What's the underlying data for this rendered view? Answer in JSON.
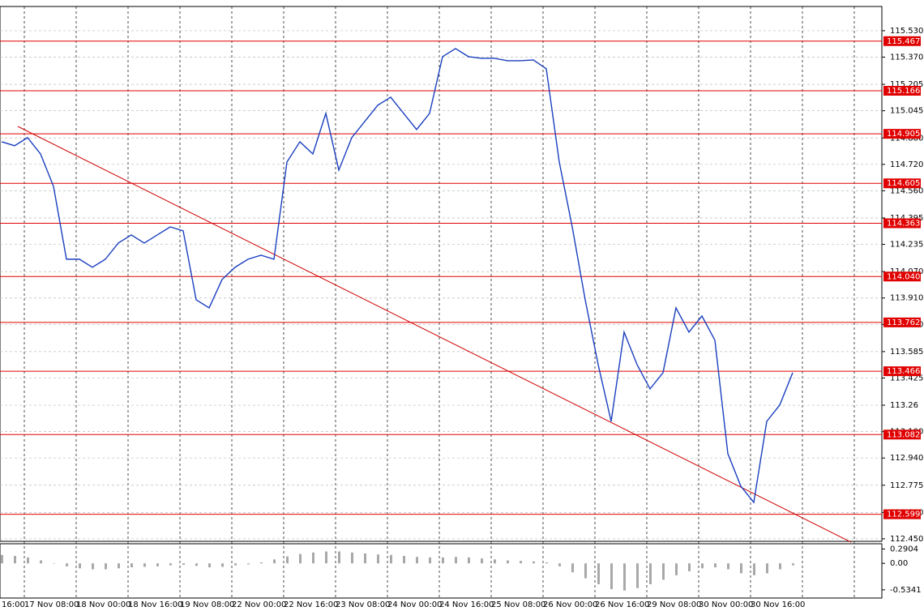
{
  "chart_data": {
    "type": "line",
    "xticks": [
      "16:00",
      "17 Nov 08:00",
      "18 Nov 00:00",
      "18 Nov 16:00",
      "19 Nov 08:00",
      "22 Nov 00:00",
      "22 Nov 16:00",
      "23 Nov 08:00",
      "24 Nov 00:00",
      "24 Nov 16:00",
      "25 Nov 08:00",
      "26 Nov 00:00",
      "26 Nov 16:00",
      "29 Nov 08:00",
      "30 Nov 00:00",
      "30 Nov 16:00"
    ],
    "ylim": [
      112.435,
      115.677
    ],
    "yticks": [
      {
        "value": 115.53,
        "label": "115.530"
      },
      {
        "value": 115.37,
        "label": "115.370"
      },
      115.205,
      115.045,
      {
        "value": 114.88,
        "label": "114.880"
      },
      {
        "value": 114.72,
        "label": "114.720"
      },
      {
        "value": 114.56,
        "label": "114.560"
      },
      114.395,
      114.235,
      {
        "value": 114.07,
        "label": "114.070"
      },
      {
        "value": 113.91,
        "label": "113.910"
      },
      {
        "value": 113.75,
        "label": "113.750"
      },
      113.585,
      113.425,
      113.26,
      {
        "value": 113.1,
        "label": "113.100"
      },
      {
        "value": 112.94,
        "label": "112.940"
      },
      112.775,
      {
        "value": 112.61,
        "label": "112.610"
      },
      {
        "value": 112.45,
        "label": "112.450"
      }
    ],
    "levels": [
      115.467,
      115.166,
      114.905,
      114.605,
      114.363,
      {
        "value": 114.04,
        "label": "114.040"
      },
      113.762,
      113.466,
      113.082,
      112.599
    ],
    "level_color": "#e00000",
    "trendline": {
      "start": 114.95,
      "end": 112.43,
      "color": "#d00000"
    },
    "series": [
      {
        "color": "#1a3fbf",
        "values": [
          114.857,
          114.833,
          114.882,
          114.783,
          114.587,
          114.145,
          114.145,
          114.096,
          114.145,
          114.243,
          114.292,
          114.243,
          114.292,
          114.341,
          114.317,
          113.899,
          113.85,
          114.022,
          114.096,
          114.145,
          114.169,
          114.145,
          114.734,
          114.857,
          114.783,
          115.029,
          114.685,
          114.882,
          114.98,
          115.078,
          115.127,
          115.029,
          114.931,
          115.029,
          115.373,
          115.422,
          115.373,
          115.363,
          115.363,
          115.348,
          115.348,
          115.353,
          115.299,
          114.734,
          114.341,
          113.899,
          113.506,
          113.162,
          113.703,
          113.506,
          113.359,
          113.457,
          113.85,
          113.703,
          113.801,
          113.654,
          112.966,
          112.769,
          112.671,
          113.162,
          113.261,
          113.457
        ]
      }
    ],
    "indicator": {
      "color": "#a8a8a8",
      "ylim": [
        -0.7,
        0.38
      ],
      "yticks": [
        0.2904,
        {
          "value": 0,
          "label": "0.00"
        },
        -0.5341
      ],
      "values": [
        0.17,
        0.15,
        0.12,
        0.06,
        0.0,
        -0.06,
        -0.1,
        -0.12,
        -0.12,
        -0.1,
        -0.08,
        -0.07,
        -0.06,
        -0.04,
        -0.03,
        -0.05,
        -0.08,
        -0.07,
        -0.04,
        -0.02,
        0.02,
        0.08,
        0.14,
        0.19,
        0.22,
        0.24,
        0.24,
        0.22,
        0.2,
        0.18,
        0.17,
        0.15,
        0.13,
        0.12,
        0.12,
        0.13,
        0.12,
        0.1,
        0.08,
        0.06,
        0.05,
        0.04,
        0.02,
        -0.06,
        -0.18,
        -0.3,
        -0.42,
        -0.52,
        -0.55,
        -0.5,
        -0.42,
        -0.33,
        -0.24,
        -0.16,
        -0.1,
        -0.08,
        -0.12,
        -0.2,
        -0.24,
        -0.2,
        -0.12,
        -0.04
      ]
    }
  }
}
